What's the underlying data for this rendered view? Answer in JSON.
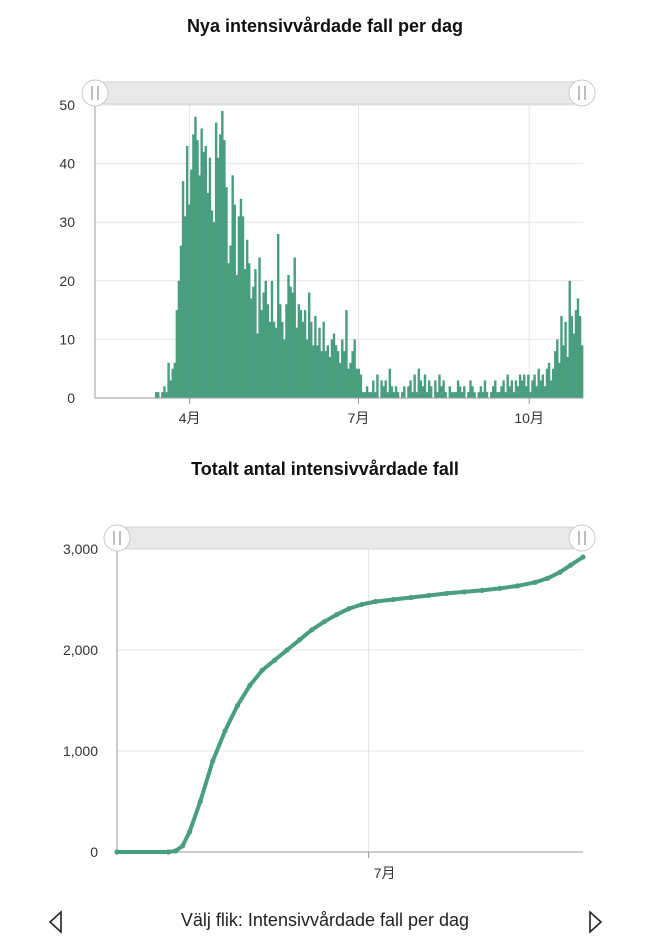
{
  "charts": {
    "daily_title": "Nya intensivvårdade fall per dag",
    "cumulative_title": "Totalt antal intensivvårdade fall"
  },
  "footer": {
    "label": "Välj flik: Intensivvårdade fall per dag",
    "prev_icon": "triangle-left-outline-icon",
    "next_icon": "triangle-right-outline-icon"
  },
  "colors": {
    "series": "#4a9e80",
    "grid": "#e4e4e4",
    "scrollbar": "#e9e9e9"
  },
  "chart_data": [
    {
      "type": "bar",
      "title": "Nya intensivvårdade fall per dag",
      "x_start": "2020-02-10",
      "x_end": "2020-10-30",
      "xticks": [
        {
          "date": "2020-04-01",
          "label": "4月"
        },
        {
          "date": "2020-07-01",
          "label": "7月"
        },
        {
          "date": "2020-10-01",
          "label": "10月"
        }
      ],
      "ylim": [
        0,
        50
      ],
      "yticks": [
        0,
        10,
        20,
        30,
        40,
        50
      ],
      "grid": true,
      "values": [
        0,
        0,
        0,
        0,
        0,
        0,
        0,
        0,
        0,
        0,
        0,
        0,
        0,
        0,
        0,
        0,
        0,
        0,
        0,
        0,
        0,
        0,
        0,
        0,
        0,
        0,
        0,
        0,
        0,
        1,
        1,
        0,
        1,
        2,
        1,
        6,
        3,
        5,
        6,
        15,
        20,
        26,
        37,
        31,
        43,
        33,
        39,
        45,
        48,
        44,
        38,
        46,
        42,
        43,
        35,
        41,
        32,
        30,
        47,
        41,
        45,
        49,
        44,
        36,
        23,
        26,
        38,
        33,
        21,
        31,
        34,
        31,
        22,
        27,
        23,
        17,
        19,
        22,
        11,
        24,
        15,
        18,
        20,
        16,
        13,
        20,
        13,
        12,
        28,
        16,
        13,
        10,
        16,
        21,
        19,
        18,
        24,
        12,
        16,
        15,
        13,
        15,
        10,
        18,
        13,
        9,
        14,
        9,
        12,
        8,
        13,
        8,
        9,
        7,
        10,
        11,
        9,
        8,
        6,
        10,
        8,
        15,
        5,
        6,
        8,
        10,
        5,
        5,
        4,
        1,
        1,
        2,
        1,
        1,
        3,
        1,
        4,
        0,
        3,
        2,
        3,
        1,
        5,
        2,
        1,
        2,
        1,
        0,
        1,
        2,
        0,
        2,
        3,
        1,
        4,
        1,
        5,
        3,
        2,
        4,
        1,
        3,
        2,
        0,
        3,
        1,
        4,
        2,
        3,
        1,
        0,
        2,
        1,
        1,
        1,
        3,
        2,
        1,
        2,
        0,
        1,
        3,
        2,
        1,
        0,
        1,
        2,
        1,
        3,
        1,
        0,
        1,
        2,
        3,
        1,
        1,
        2,
        3,
        1,
        4,
        2,
        3,
        1,
        3,
        2,
        4,
        3,
        4,
        2,
        4,
        1,
        3,
        4,
        2,
        5,
        3,
        4,
        2,
        5,
        6,
        3,
        5,
        8,
        10,
        6,
        14,
        9,
        13,
        7,
        20,
        14,
        11,
        15,
        17,
        14,
        9
      ]
    },
    {
      "type": "line",
      "title": "Totalt antal intensivvårdade fall",
      "x_start": "2020-02-10",
      "x_end": "2020-10-30",
      "xticks": [
        {
          "date": "2020-07-01",
          "label": "7月"
        }
      ],
      "ylim": [
        0,
        3000
      ],
      "yticks": [
        0,
        1000,
        2000,
        3000
      ],
      "ytick_labels": [
        "0",
        "1,000",
        "2,000",
        "3,000"
      ],
      "grid": true,
      "points": [
        {
          "x": "2020-02-10",
          "y": 0
        },
        {
          "x": "2020-03-10",
          "y": 0
        },
        {
          "x": "2020-03-14",
          "y": 10
        },
        {
          "x": "2020-03-18",
          "y": 60
        },
        {
          "x": "2020-03-22",
          "y": 200
        },
        {
          "x": "2020-03-28",
          "y": 500
        },
        {
          "x": "2020-04-04",
          "y": 900
        },
        {
          "x": "2020-04-11",
          "y": 1200
        },
        {
          "x": "2020-04-18",
          "y": 1450
        },
        {
          "x": "2020-04-25",
          "y": 1650
        },
        {
          "x": "2020-05-02",
          "y": 1800
        },
        {
          "x": "2020-05-09",
          "y": 1900
        },
        {
          "x": "2020-05-16",
          "y": 2000
        },
        {
          "x": "2020-05-23",
          "y": 2100
        },
        {
          "x": "2020-05-30",
          "y": 2200
        },
        {
          "x": "2020-06-06",
          "y": 2280
        },
        {
          "x": "2020-06-13",
          "y": 2350
        },
        {
          "x": "2020-06-20",
          "y": 2410
        },
        {
          "x": "2020-06-27",
          "y": 2450
        },
        {
          "x": "2020-07-05",
          "y": 2480
        },
        {
          "x": "2020-07-15",
          "y": 2500
        },
        {
          "x": "2020-07-25",
          "y": 2520
        },
        {
          "x": "2020-08-04",
          "y": 2540
        },
        {
          "x": "2020-08-14",
          "y": 2560
        },
        {
          "x": "2020-08-24",
          "y": 2575
        },
        {
          "x": "2020-09-03",
          "y": 2590
        },
        {
          "x": "2020-09-13",
          "y": 2610
        },
        {
          "x": "2020-09-23",
          "y": 2635
        },
        {
          "x": "2020-10-03",
          "y": 2670
        },
        {
          "x": "2020-10-10",
          "y": 2710
        },
        {
          "x": "2020-10-17",
          "y": 2770
        },
        {
          "x": "2020-10-23",
          "y": 2840
        },
        {
          "x": "2020-10-30",
          "y": 2920
        }
      ]
    }
  ]
}
